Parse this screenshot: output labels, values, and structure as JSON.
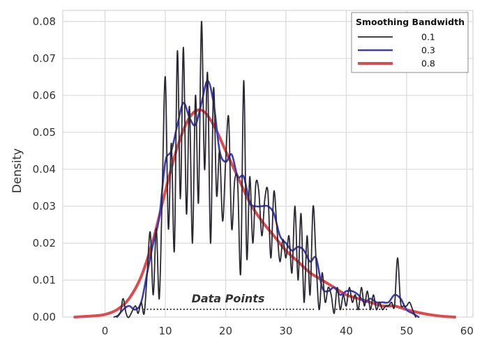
{
  "chart_data": {
    "type": "line",
    "title": "",
    "xlabel": "",
    "ylabel": "Density",
    "xlim": [
      -7,
      61
    ],
    "ylim": [
      0,
      0.083
    ],
    "x_ticks": [
      0,
      10,
      20,
      30,
      40,
      50,
      60
    ],
    "x_tick_labels": [
      "0",
      "10",
      "20",
      "30",
      "40",
      "50",
      "60"
    ],
    "y_ticks": [
      0,
      0.01,
      0.02,
      0.03,
      0.04,
      0.05,
      0.06,
      0.07,
      0.08
    ],
    "y_tick_labels": [
      "0.00",
      "0.01",
      "0.02",
      "0.03",
      "0.04",
      "0.05",
      "0.06",
      "0.07",
      "0.08"
    ],
    "grid": true,
    "legend": {
      "title": "Smoothing Bandwidth",
      "position": "top-right",
      "entries": [
        "0.1",
        "0.3",
        "0.8"
      ]
    },
    "annotation": "Data Points",
    "series": [
      {
        "name": "0.1",
        "color": "#2b2733",
        "x": [
          1.5,
          2.5,
          3.0,
          3.5,
          4.0,
          5.0,
          5.5,
          6.0,
          6.5,
          7.0,
          7.5,
          8.0,
          8.5,
          9.0,
          9.5,
          10.0,
          10.5,
          11.0,
          11.5,
          12.0,
          12.5,
          13.0,
          13.5,
          14.0,
          14.5,
          15.0,
          15.5,
          16.0,
          16.5,
          17.0,
          17.5,
          18.0,
          18.5,
          19.0,
          19.5,
          20.0,
          20.5,
          21.0,
          21.5,
          22.0,
          22.5,
          23.0,
          23.5,
          24.0,
          24.5,
          25.0,
          25.5,
          26.0,
          26.5,
          27.0,
          27.5,
          28.0,
          28.5,
          29.0,
          29.5,
          30.0,
          30.5,
          31.0,
          31.5,
          32.0,
          32.5,
          33.0,
          33.5,
          34.0,
          34.5,
          35.0,
          35.5,
          36.0,
          36.5,
          37.0,
          37.5,
          38.0,
          38.5,
          39.0,
          39.5,
          40.0,
          40.5,
          41.0,
          41.5,
          42.0,
          42.5,
          43.0,
          43.5,
          44.0,
          44.5,
          45.0,
          45.5,
          46.0,
          46.5,
          47.0,
          47.5,
          48.0,
          48.5,
          49.0,
          49.5,
          50.0,
          50.5,
          51.0,
          51.5
        ],
        "values": [
          0.0,
          0.001,
          0.005,
          0.001,
          0.0,
          0.003,
          0.001,
          0.004,
          0.001,
          0.012,
          0.023,
          0.006,
          0.024,
          0.005,
          0.035,
          0.065,
          0.024,
          0.047,
          0.018,
          0.072,
          0.032,
          0.073,
          0.028,
          0.057,
          0.02,
          0.06,
          0.031,
          0.08,
          0.04,
          0.066,
          0.02,
          0.062,
          0.033,
          0.045,
          0.026,
          0.042,
          0.054,
          0.024,
          0.037,
          0.036,
          0.012,
          0.064,
          0.016,
          0.038,
          0.02,
          0.036,
          0.034,
          0.022,
          0.032,
          0.034,
          0.016,
          0.034,
          0.024,
          0.015,
          0.021,
          0.016,
          0.022,
          0.012,
          0.03,
          0.01,
          0.028,
          0.004,
          0.022,
          0.006,
          0.03,
          0.015,
          0.002,
          0.012,
          0.004,
          0.008,
          0.006,
          0.001,
          0.008,
          0.002,
          0.006,
          0.003,
          0.008,
          0.004,
          0.006,
          0.002,
          0.008,
          0.003,
          0.007,
          0.002,
          0.006,
          0.002,
          0.004,
          0.002,
          0.003,
          0.003,
          0.004,
          0.003,
          0.016,
          0.004,
          0.003,
          0.003,
          0.004,
          0.002,
          0.0
        ]
      },
      {
        "name": "0.3",
        "color": "#3b3bc0",
        "x": [
          2,
          3,
          4,
          5,
          6,
          7,
          8,
          9,
          10,
          11,
          12,
          13,
          14,
          15,
          16,
          17,
          18,
          19,
          20,
          21,
          22,
          23,
          24,
          25,
          26,
          27,
          28,
          29,
          30,
          31,
          32,
          33,
          34,
          35,
          36,
          37,
          38,
          39,
          40,
          41,
          42,
          43,
          44,
          45,
          46,
          47,
          48,
          49,
          50,
          51,
          52
        ],
        "values": [
          0.0,
          0.002,
          0.003,
          0.002,
          0.004,
          0.012,
          0.02,
          0.027,
          0.042,
          0.045,
          0.052,
          0.058,
          0.054,
          0.052,
          0.058,
          0.064,
          0.058,
          0.045,
          0.042,
          0.044,
          0.038,
          0.038,
          0.031,
          0.03,
          0.03,
          0.03,
          0.028,
          0.022,
          0.02,
          0.018,
          0.019,
          0.018,
          0.015,
          0.016,
          0.008,
          0.007,
          0.008,
          0.006,
          0.007,
          0.007,
          0.006,
          0.004,
          0.005,
          0.004,
          0.004,
          0.004,
          0.006,
          0.005,
          0.002,
          0.001,
          0.0
        ]
      },
      {
        "name": "0.8",
        "color": "#e04a4d",
        "x": [
          -5,
          -2,
          0,
          2,
          4,
          6,
          8,
          10,
          12,
          14,
          16,
          18,
          20,
          22,
          24,
          26,
          28,
          30,
          32,
          34,
          36,
          38,
          40,
          42,
          44,
          46,
          48,
          50,
          52,
          54,
          56,
          58
        ],
        "values": [
          0.0,
          0.0003,
          0.0007,
          0.002,
          0.005,
          0.011,
          0.021,
          0.034,
          0.046,
          0.054,
          0.056,
          0.052,
          0.045,
          0.038,
          0.031,
          0.026,
          0.022,
          0.018,
          0.015,
          0.012,
          0.01,
          0.008,
          0.006,
          0.005,
          0.004,
          0.003,
          0.003,
          0.002,
          0.0012,
          0.0006,
          0.0002,
          0.0
        ]
      }
    ]
  }
}
